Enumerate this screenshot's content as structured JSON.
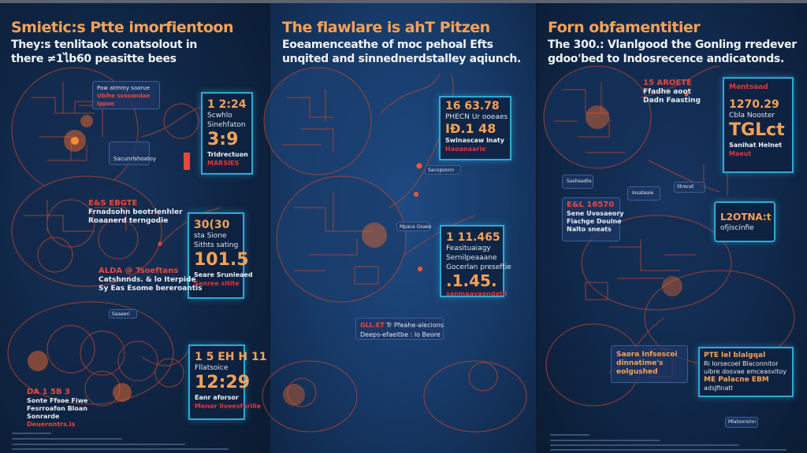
{
  "colors": {
    "background": "#0d1c33",
    "accent_orange": "#f6a258",
    "accent_red": "#e8353a",
    "stat_border": "#2ea9d6",
    "map_line": "#c4462d"
  },
  "panels": [
    {
      "title": "Smietic:s Ptte imorfientoon",
      "subtitle": [
        "They:s tenlitaok conatsolout in",
        "there ≠1ไb60 peasitte bees"
      ],
      "note_box": [
        "Paw atmmy soarue",
        "Ublhe sosoandae",
        "Ippoe"
      ],
      "small_box": "Sacunrlshoatoy",
      "stat1": {
        "num": "1 2:24",
        "line1": "Scwhlo",
        "line2": "Sinehfaton",
        "big": "3:9",
        "wb": "Tridrectuon",
        "red": "MARSIES"
      },
      "label1": {
        "red": "E&S EBGTE",
        "lines": [
          "Frnadsohn beotrlenhler",
          "Roaanerd terngodie"
        ]
      },
      "stat2": {
        "num": "30(30",
        "line1": "sta Sione",
        "line2": "Sithts sating",
        "big": "101.5",
        "wb": "Seare Srunieaed",
        "red": "Sanree sitite"
      },
      "label2": {
        "red": "ALDA @ Tsoeftans",
        "lines": [
          "Catshnnds. & lo Iterpide",
          "Sy Eas Esome bereroantis"
        ]
      },
      "stat3": {
        "num": "1 5 EH H 11",
        "line1": "Fllatsoice",
        "big": "12:29",
        "wb": "Eanr aforsor",
        "red": "Menor liveesfarilie"
      },
      "label3": {
        "red": "DA 1 5B 3",
        "lines": [
          "Sonte Ffsoe Fiwe",
          "Fesrroafon Bloan",
          "Sonrarde"
        ],
        "red2": "Deuerontrs.is"
      },
      "top_tag": "Saaaeri"
    },
    {
      "title": "The flawlare is ahT Pitzen",
      "subtitle": [
        "Eoeamenceathe of moc pehoal Efts",
        "unqited and sinnednerdstalley aqiunch."
      ],
      "stat1": {
        "num": "16 63.78",
        "line1": "PHECN Ur ooeaes",
        "big": "IÐ.1 48",
        "wb": "Swinascaw lnaty",
        "red": "Haoanaarie"
      },
      "tag1": "Sacopoonn",
      "tag2": "Mpaca Gsaea",
      "stat2": {
        "num": "1 11.465",
        "line1": "Feasituaiagy",
        "line2": "Sernilpeaaane",
        "line3": "Gocerlan preseftie",
        "big": ".1.45.",
        "red": "sanmaavaondatil"
      },
      "label": {
        "red": "GLL.ET",
        "text": "Tr Pfeahe-alecions",
        "line2": "Deeps-efaeitbe : lo Beore"
      }
    },
    {
      "title": "Forn obfamentitier",
      "subtitle": [
        "The 300.: Vlanlgood the Gonling rredever",
        "gdoo'bed to Indosrecence andicatonds."
      ],
      "tag_red": {
        "red": "15 AROETE",
        "lines": [
          "Ffadhe aoot",
          "Dadn Faasting"
        ]
      },
      "stat1": {
        "head": "Mantsaad",
        "num": "1270.29",
        "line1": "Cbla Nooster",
        "big": "TGLct",
        "wb": "Sanihat Helnet",
        "red": "Maeut"
      },
      "box1": {
        "red": "E&L 16570",
        "lines": [
          "Sene Uvosaeory",
          "Fiachge Doulne",
          "Nalto sneats"
        ]
      },
      "box2": {
        "num": "L2OTNA:t",
        "line": "ofjiscinfie"
      },
      "small_tags": [
        "Sasheadte",
        "Iosateaie",
        "Strecet"
      ],
      "box3": [
        "Saora Infsoscoi",
        "dinnatime's",
        "eolgushed"
      ],
      "box4": {
        "num": "PTE lel blalgqal",
        "lines": [
          "Ri Iorsecoel Blaconnitor",
          "uibre dosvae emceasvitoy"
        ],
        "orange": "ME Palacne EBM",
        "last": "adsJfinatl"
      },
      "bottom_tag": "Mlatoorsinn"
    }
  ]
}
